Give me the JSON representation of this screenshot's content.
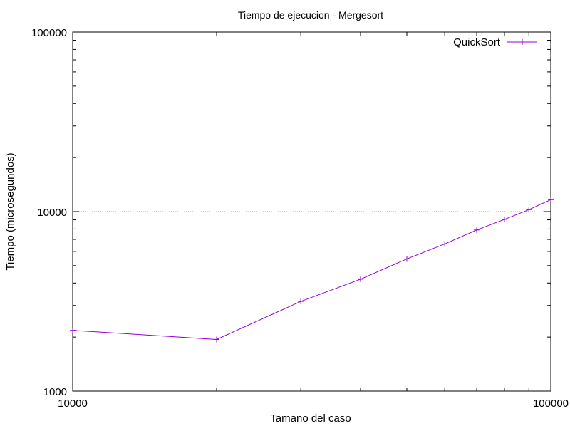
{
  "chart_data": {
    "type": "line",
    "title": "Tiempo de ejecucion - Mergesort",
    "xlabel": "Tamano del caso",
    "ylabel": "Tiempo (microsegundos)",
    "x_scale": "log",
    "y_scale": "log",
    "xlim": [
      10000,
      100000
    ],
    "ylim": [
      1000,
      100000
    ],
    "x_ticks": [
      {
        "value": 10000,
        "label": "10000"
      },
      {
        "value": 100000,
        "label": "100000"
      }
    ],
    "y_ticks": [
      {
        "value": 1000,
        "label": "1000"
      },
      {
        "value": 10000,
        "label": "10000"
      },
      {
        "value": 100000,
        "label": "100000"
      }
    ],
    "grid": "horizontal dotted line at 10000",
    "legend_position": "top-right",
    "series": [
      {
        "name": "QuickSort",
        "color": "#9400d3",
        "x": [
          10000,
          20000,
          30000,
          40000,
          50000,
          60000,
          70000,
          80000,
          90000,
          100000
        ],
        "y": [
          2180,
          1940,
          3160,
          4200,
          5450,
          6600,
          7900,
          9050,
          10250,
          11650
        ]
      }
    ]
  }
}
